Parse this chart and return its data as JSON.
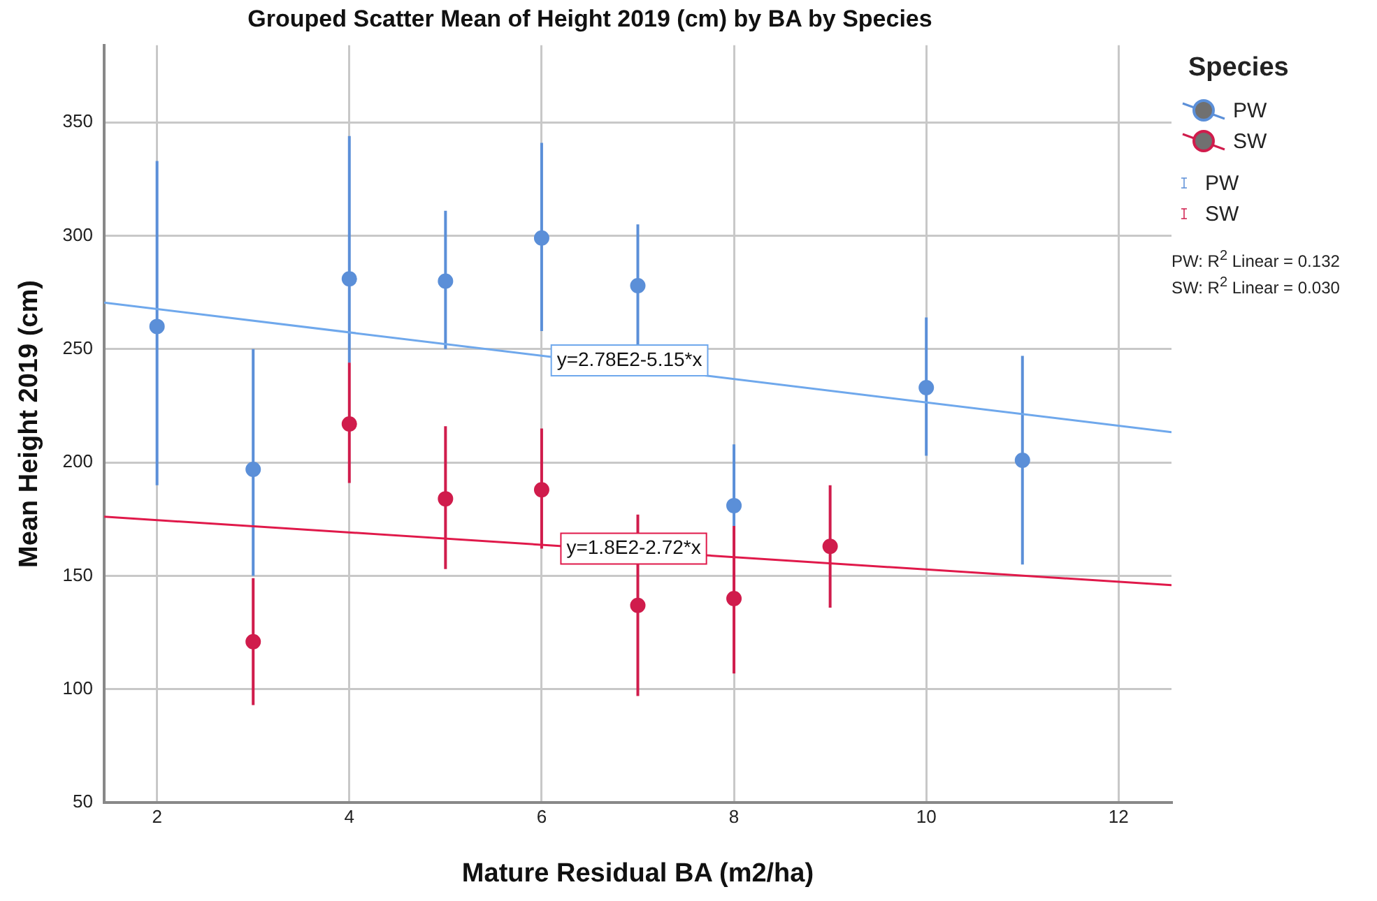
{
  "chart_data": {
    "type": "scatter",
    "title": "Grouped Scatter Mean of Height 2019 (cm) by BA by Species",
    "xlabel": "Mature Residual BA (m2/ha)",
    "ylabel": "Mean Height 2019 (cm)",
    "legend_title": "Species",
    "series": [
      {
        "name": "PW",
        "color": "#5b8fd8",
        "x": [
          2,
          3,
          4,
          5,
          6,
          7,
          8,
          10,
          11
        ],
        "values": [
          260,
          197,
          281,
          280,
          299,
          278,
          181,
          233,
          201
        ],
        "errors": [
          [
            190,
            333
          ],
          [
            150,
            250
          ],
          [
            244,
            344
          ],
          [
            250,
            311
          ],
          [
            258,
            341
          ],
          [
            250,
            305
          ],
          [
            172,
            208
          ],
          [
            203,
            264
          ],
          [
            155,
            247
          ]
        ]
      },
      {
        "name": "SW",
        "color": "#d01c4c",
        "x": [
          3,
          4,
          5,
          6,
          7,
          8,
          9
        ],
        "values": [
          121,
          217,
          184,
          188,
          137,
          140,
          163
        ],
        "errors": [
          [
            93,
            149
          ],
          [
            191,
            244
          ],
          [
            153,
            216
          ],
          [
            162,
            215
          ],
          [
            97,
            177
          ],
          [
            107,
            172
          ],
          [
            136,
            190
          ]
        ]
      },
      {
        "type": "line",
        "marker": "none",
        "color": "#6fa8ec",
        "x": [
          1.45,
          12.55
        ],
        "values": [
          270.5,
          213.4
        ]
      },
      {
        "type": "line",
        "marker": "none",
        "color": "#e0194a",
        "x": [
          1.45,
          12.55
        ],
        "values": [
          176.1,
          145.9
        ]
      }
    ],
    "xlim": [
      1.45,
      12.55
    ],
    "xticks": [
      2,
      4,
      6,
      8,
      10,
      12
    ],
    "ylim": [
      50,
      384
    ],
    "yticks": [
      50,
      100,
      150,
      200,
      250,
      300,
      350
    ],
    "grid": true,
    "legend": "top right",
    "marker": "circle",
    "annotations": [
      {
        "text": "y=2.78E2-5.15*x",
        "x": 6.1,
        "y": 245
      },
      {
        "text": "y=1.8E2-2.72*x",
        "x": 6.2,
        "y": 162
      },
      "PW: R$^{2}$ Linear = 0.132",
      "SW: R$^{2}$ Linear = 0.030"
    ]
  }
}
